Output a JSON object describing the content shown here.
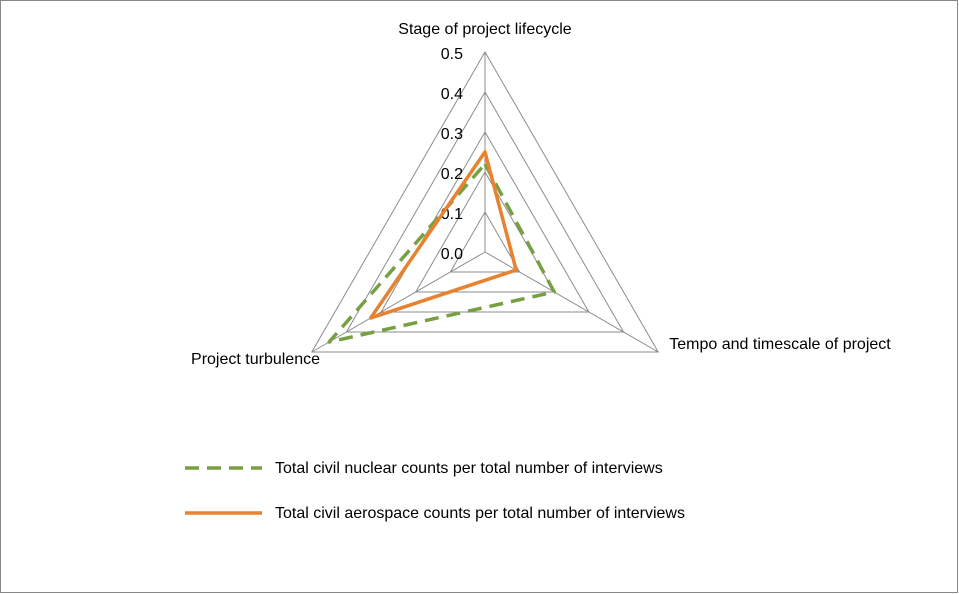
{
  "chart_data": {
    "type": "radar",
    "categories": [
      "Stage of project lifecycle",
      "Tempo and timescale of project",
      "Project turbulence"
    ],
    "series": [
      {
        "name": "Total civil nuclear counts per total  number of interviews",
        "color": "#77a043",
        "dashed": true,
        "values": [
          0.22,
          0.2,
          0.45
        ]
      },
      {
        "name": "Total civil aerospace counts per total  number of interviews",
        "color": "#e8822e",
        "dashed": false,
        "values": [
          0.25,
          0.09,
          0.33
        ]
      }
    ],
    "ylim": [
      0,
      0.5
    ],
    "yticks": [
      {
        "value": 0,
        "label": "0.0"
      },
      0.1,
      0.2,
      0.3,
      0.4,
      0.5
    ],
    "grid": true,
    "legend": "bottom"
  }
}
